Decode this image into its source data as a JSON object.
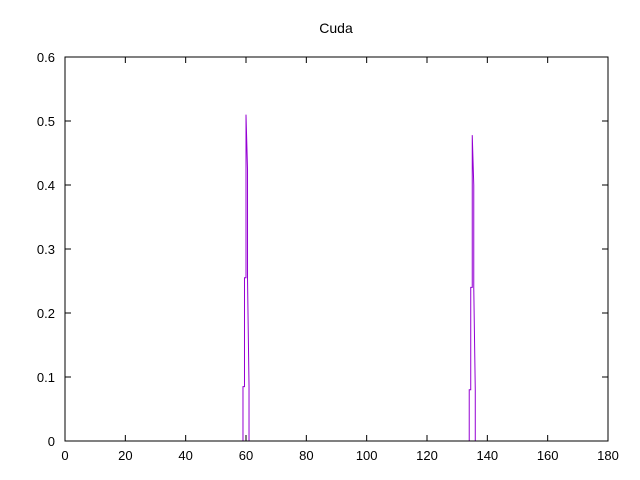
{
  "chart_data": {
    "type": "line",
    "title": "Cuda",
    "xlabel": "",
    "ylabel": "",
    "xlim": [
      0,
      180
    ],
    "ylim": [
      0,
      0.6
    ],
    "xticks": [
      "0",
      "20",
      "40",
      "60",
      "80",
      "100",
      "120",
      "140",
      "160",
      "180"
    ],
    "yticks": [
      "0",
      "0.1",
      "0.2",
      "0.3",
      "0.4",
      "0.5",
      "0.6"
    ],
    "grid": false,
    "legend": "none",
    "series": [
      {
        "color": "#9400d3",
        "x": [
          0,
          59,
          59,
          59.5,
          59.5,
          60,
          60,
          60.5,
          60.5,
          61,
          61,
          180
        ],
        "y": [
          0,
          0,
          0.085,
          0.085,
          0.255,
          0.255,
          0.51,
          0.425,
          0.255,
          0.085,
          0,
          0
        ]
      },
      {
        "color": "#9400d3",
        "x": [
          0,
          134,
          134,
          134.5,
          134.5,
          135,
          135,
          135.5,
          135.5,
          136,
          136,
          180
        ],
        "y": [
          0,
          0,
          0.08,
          0.08,
          0.24,
          0.24,
          0.478,
          0.4,
          0.24,
          0.08,
          0,
          0
        ]
      }
    ]
  }
}
